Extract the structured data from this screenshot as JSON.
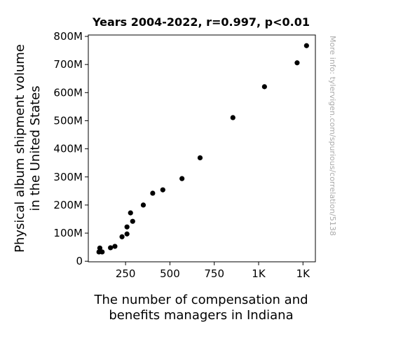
{
  "chart_data": {
    "type": "scatter",
    "title": "Years 2004-2022, r=0.997, p<0.01",
    "xlabel_lines": [
      "The number of compensation and",
      "benefits managers in Indiana"
    ],
    "ylabel_lines": [
      "Physical album shipment volume",
      "in the United States"
    ],
    "xlim": [
      40,
      1320
    ],
    "ylim": [
      -2,
      805
    ],
    "x_ticks": [
      {
        "value": 250,
        "label": "250"
      },
      {
        "value": 500,
        "label": "500"
      },
      {
        "value": 750,
        "label": "750"
      },
      {
        "value": 1000,
        "label": "1K"
      },
      {
        "value": 1250,
        "label": "1K"
      }
    ],
    "y_ticks": [
      {
        "value": 0,
        "label": "0"
      },
      {
        "value": 100,
        "label": "100M"
      },
      {
        "value": 200,
        "label": "200M"
      },
      {
        "value": 300,
        "label": "300M"
      },
      {
        "value": 400,
        "label": "400M"
      },
      {
        "value": 500,
        "label": "500M"
      },
      {
        "value": 600,
        "label": "600M"
      },
      {
        "value": 700,
        "label": "700M"
      },
      {
        "value": 800,
        "label": "800M"
      }
    ],
    "y_unit": "million units",
    "points": [
      {
        "x": 100,
        "y": 33
      },
      {
        "x": 105,
        "y": 47
      },
      {
        "x": 118,
        "y": 33
      },
      {
        "x": 165,
        "y": 48
      },
      {
        "x": 190,
        "y": 53
      },
      {
        "x": 230,
        "y": 87
      },
      {
        "x": 258,
        "y": 97
      },
      {
        "x": 258,
        "y": 122
      },
      {
        "x": 278,
        "y": 172
      },
      {
        "x": 290,
        "y": 142
      },
      {
        "x": 350,
        "y": 200
      },
      {
        "x": 403,
        "y": 242
      },
      {
        "x": 460,
        "y": 254
      },
      {
        "x": 568,
        "y": 294
      },
      {
        "x": 670,
        "y": 368
      },
      {
        "x": 855,
        "y": 511
      },
      {
        "x": 1033,
        "y": 621
      },
      {
        "x": 1217,
        "y": 706
      },
      {
        "x": 1270,
        "y": 767
      }
    ],
    "marker_color": "#000000",
    "grid": false,
    "legend": "none"
  },
  "side_note": "More info: tylervigen.com/spurious/correlation/5138"
}
